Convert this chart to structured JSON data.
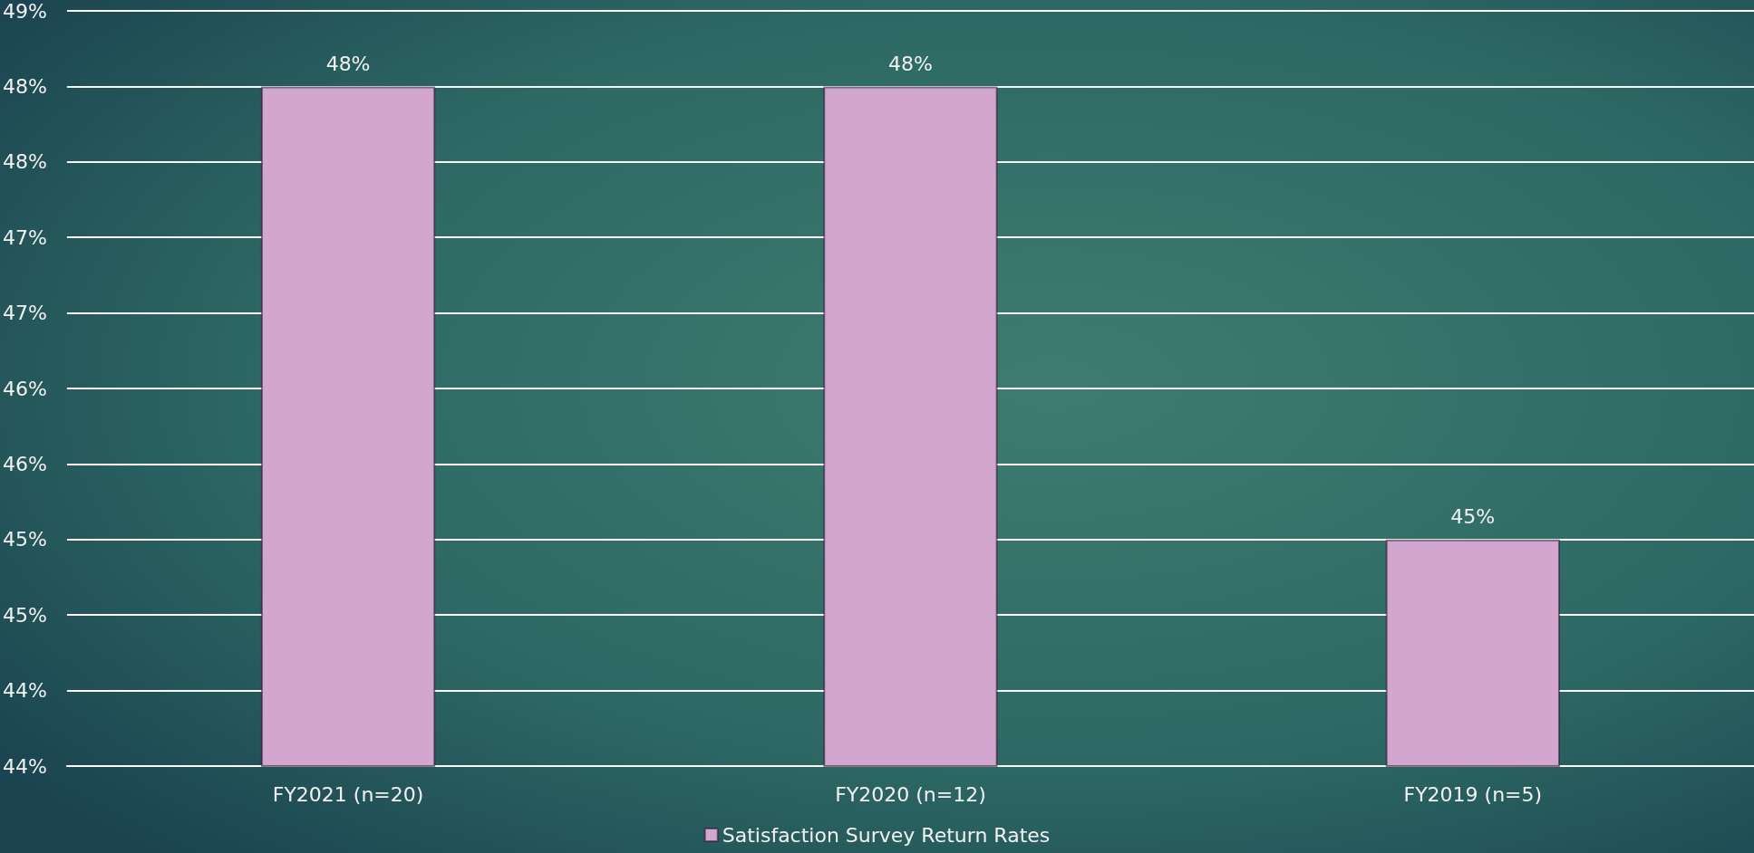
{
  "chart_data": {
    "type": "bar",
    "categories": [
      "FY2021 (n=20)",
      "FY2020 (n=12)",
      "FY2019 (n=5)"
    ],
    "series": [
      {
        "name": "Satisfaction Survey Return Rates",
        "color": "#d3a6d0",
        "values": [
          48,
          48,
          45
        ],
        "value_labels": [
          "48%",
          "48%",
          "45%"
        ]
      }
    ],
    "ylim": [
      43.5,
      48.5
    ],
    "yticks": [
      {
        "value": 43.5,
        "label": "44%"
      },
      {
        "value": 44,
        "label": "44%"
      },
      {
        "value": 44.5,
        "label": "45%"
      },
      {
        "value": 45,
        "label": "45%"
      },
      {
        "value": 45.5,
        "label": "46%"
      },
      {
        "value": 46,
        "label": "46%"
      },
      {
        "value": 46.5,
        "label": "47%"
      },
      {
        "value": 47,
        "label": "47%"
      },
      {
        "value": 47.5,
        "label": "48%"
      },
      {
        "value": 48,
        "label": "48%"
      },
      {
        "value": 48.5,
        "label": "49%"
      }
    ],
    "grid": "y",
    "legend": "bottom"
  }
}
